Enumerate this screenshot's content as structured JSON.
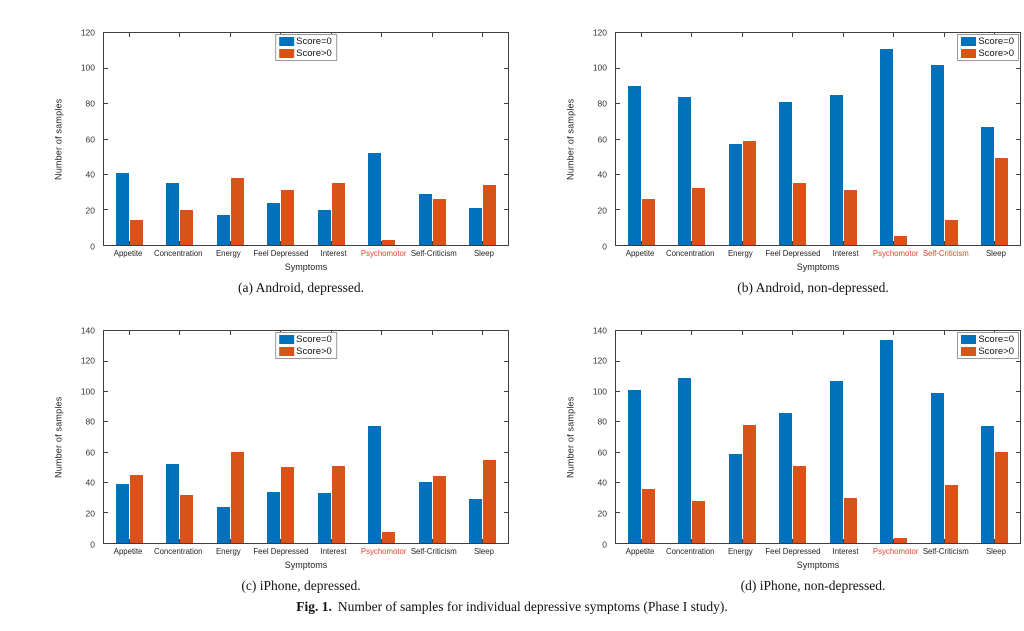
{
  "figure_caption": {
    "label": "Fig. 1.",
    "text": "Number of samples for individual depressive symptoms (Phase I study)."
  },
  "colors": {
    "score_equal_0": "#0072BD",
    "score_greater_0": "#D95319",
    "highlighted_label": "#E8402A",
    "axis": "#3F3F3F"
  },
  "chart_data": [
    {
      "type": "bar",
      "caption": "(a) Android, depressed.",
      "ylabel": "Number of samples",
      "xlabel": "Symptoms",
      "ylim": [
        0,
        120
      ],
      "ytick_step": 20,
      "grid": false,
      "legend_pos": "top-center",
      "categories": [
        "Appetite",
        "Concentration",
        "Energy",
        "Feel Depressed",
        "Interest",
        "Psychomotor",
        "Self-Criticism",
        "Sleep"
      ],
      "red_categories": [
        "Psychomotor"
      ],
      "series": [
        {
          "name": "Score=0",
          "color": "#0072BD",
          "values": [
            41,
            35,
            17,
            24,
            20,
            52,
            29,
            21
          ]
        },
        {
          "name": "Score>0",
          "color": "#D95319",
          "values": [
            14,
            20,
            38,
            31,
            35,
            3,
            26,
            34
          ]
        }
      ]
    },
    {
      "type": "bar",
      "caption": "(b) Android, non-depressed.",
      "ylabel": "Number of samples",
      "xlabel": "Symptoms",
      "ylim": [
        0,
        120
      ],
      "ytick_step": 20,
      "grid": false,
      "legend_pos": "top-right",
      "categories": [
        "Appetite",
        "Concentration",
        "Energy",
        "Feel Depressed",
        "Interest",
        "Psychomotor",
        "Self-Criticism",
        "Sleep"
      ],
      "red_categories": [
        "Psychomotor",
        "Self-Criticism"
      ],
      "series": [
        {
          "name": "Score=0",
          "color": "#0072BD",
          "values": [
            90,
            84,
            57,
            81,
            85,
            111,
            102,
            67
          ]
        },
        {
          "name": "Score>0",
          "color": "#D95319",
          "values": [
            26,
            32,
            59,
            35,
            31,
            5,
            14,
            49
          ]
        }
      ]
    },
    {
      "type": "bar",
      "caption": "(c) iPhone, depressed.",
      "ylabel": "Number of samples",
      "xlabel": "Symptoms",
      "ylim": [
        0,
        140
      ],
      "ytick_step": 20,
      "grid": false,
      "legend_pos": "top-center",
      "categories": [
        "Appetite",
        "Concentration",
        "Energy",
        "Feel Depressed",
        "Interest",
        "Psychomotor",
        "Self-Criticism",
        "Sleep"
      ],
      "red_categories": [
        "Psychomotor"
      ],
      "series": [
        {
          "name": "Score=0",
          "color": "#0072BD",
          "values": [
            39,
            52,
            24,
            34,
            33,
            77,
            40,
            29
          ]
        },
        {
          "name": "Score>0",
          "color": "#D95319",
          "values": [
            45,
            32,
            60,
            50,
            51,
            7,
            44,
            55
          ]
        }
      ]
    },
    {
      "type": "bar",
      "caption": "(d) iPhone, non-depressed.",
      "ylabel": "Number of samples",
      "xlabel": "Symptoms",
      "ylim": [
        0,
        140
      ],
      "ytick_step": 20,
      "grid": false,
      "legend_pos": "top-right",
      "categories": [
        "Appetite",
        "Concentration",
        "Energy",
        "Feel Depressed",
        "Interest",
        "Psychomotor",
        "Self-Criticism",
        "Sleep"
      ],
      "red_categories": [
        "Psychomotor"
      ],
      "series": [
        {
          "name": "Score=0",
          "color": "#0072BD",
          "values": [
            101,
            109,
            59,
            86,
            107,
            134,
            99,
            77
          ]
        },
        {
          "name": "Score>0",
          "color": "#D95319",
          "values": [
            36,
            28,
            78,
            51,
            30,
            3,
            38,
            60
          ]
        }
      ]
    }
  ]
}
